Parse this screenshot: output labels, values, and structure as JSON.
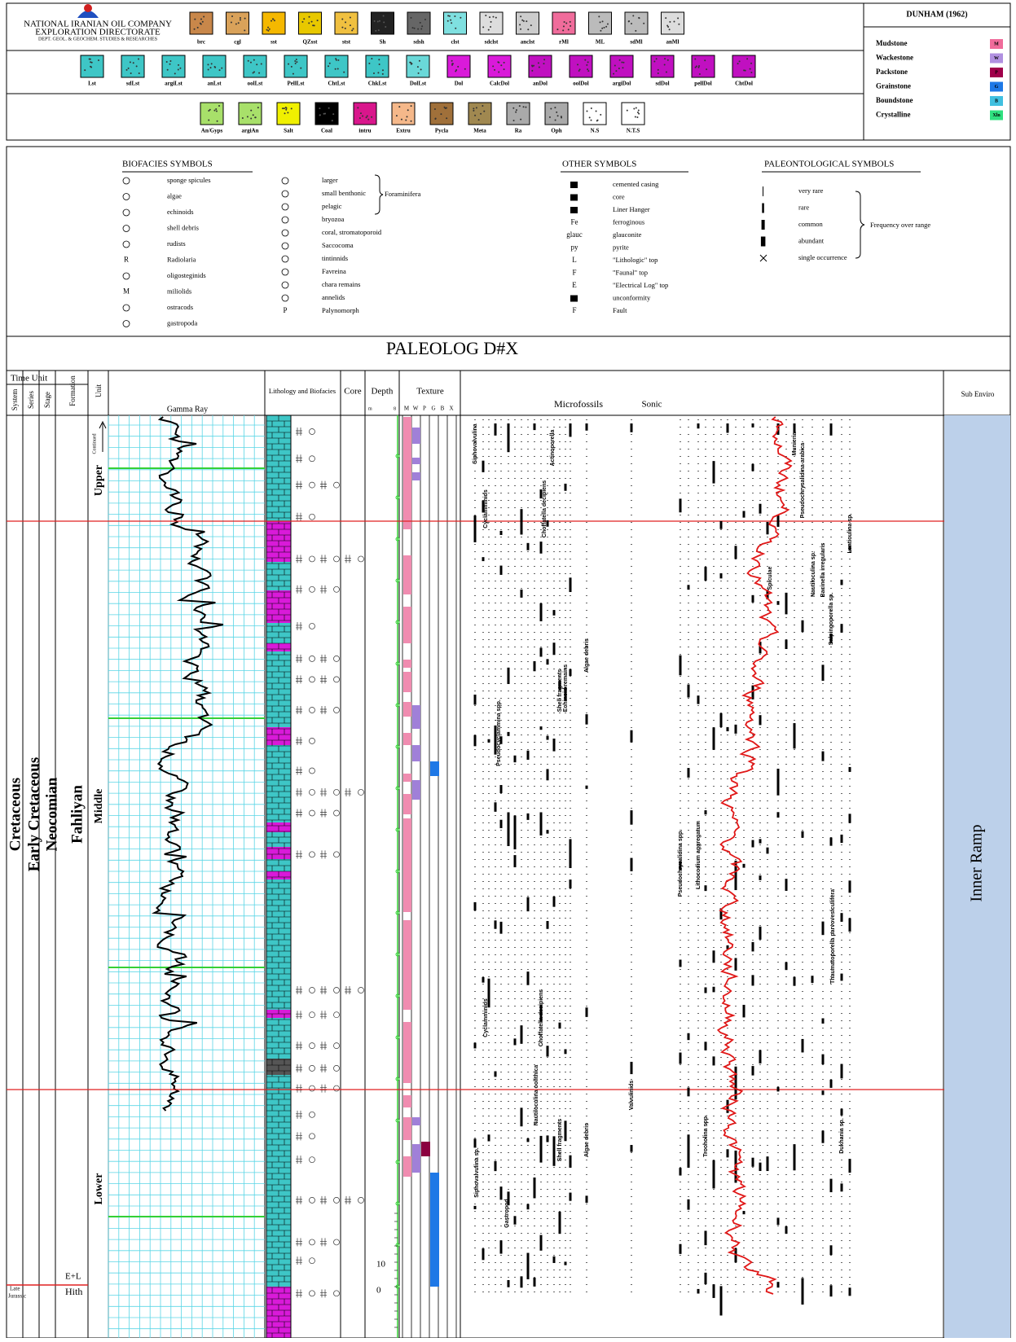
{
  "header": {
    "company": [
      "NATIONAL IRANIAN OIL COMPANY",
      "EXPLORATION DIRECTORATE",
      "DEPT. GEOL. & GEOCHEM. STUDIES & RESEARCHES"
    ],
    "lithology_rows": [
      [
        {
          "label": "brc",
          "color": "#c8874a"
        },
        {
          "label": "cgl",
          "color": "#d9a25a"
        },
        {
          "label": "sst",
          "color": "#f5b800"
        },
        {
          "label": "QZsst",
          "color": "#e8c800"
        },
        {
          "label": "stst",
          "color": "#f0c040"
        },
        {
          "label": "Sh",
          "color": "#222222"
        },
        {
          "label": "sdsh",
          "color": "#666666"
        },
        {
          "label": "clst",
          "color": "#7fe0e0"
        },
        {
          "label": "sdclst",
          "color": "#dddddd"
        },
        {
          "label": "anclst",
          "color": "#cccccc"
        },
        {
          "label": "rMl",
          "color": "#f06c9b"
        },
        {
          "label": "ML",
          "color": "#bbbbbb"
        },
        {
          "label": "sdMl",
          "color": "#bbbbbb"
        },
        {
          "label": "anMl",
          "color": "#dddddd"
        }
      ],
      [
        {
          "label": "Lst",
          "color": "#3ec6c6"
        },
        {
          "label": "sdLst",
          "color": "#3ec6c6"
        },
        {
          "label": "argiLst",
          "color": "#3ec6c6"
        },
        {
          "label": "anLst",
          "color": "#3ec6c6"
        },
        {
          "label": "oolLst",
          "color": "#3ec6c6"
        },
        {
          "label": "PellLst",
          "color": "#3ec6c6"
        },
        {
          "label": "ChtLst",
          "color": "#3ec6c6"
        },
        {
          "label": "ChkLst",
          "color": "#3ec6c6"
        },
        {
          "label": "DolLst",
          "color": "#6ad8d8"
        },
        {
          "label": "Dol",
          "color": "#d91ad9"
        },
        {
          "label": "CalcDol",
          "color": "#d91ad9"
        },
        {
          "label": "anDol",
          "color": "#c010c0"
        },
        {
          "label": "oolDol",
          "color": "#c010c0"
        },
        {
          "label": "argiDol",
          "color": "#c010c0"
        },
        {
          "label": "sdDol",
          "color": "#c010c0"
        },
        {
          "label": "pellDol",
          "color": "#c010c0"
        },
        {
          "label": "ChtDol",
          "color": "#c010c0"
        }
      ],
      [
        {
          "label": "An/Gyps",
          "color": "#a8e06a"
        },
        {
          "label": "argiAn",
          "color": "#a8e06a"
        },
        {
          "label": "Salt",
          "color": "#f0f000"
        },
        {
          "label": "Coal",
          "color": "#000000"
        },
        {
          "label": "intru",
          "color": "#d9168c"
        },
        {
          "label": "Extru",
          "color": "#f5b88a"
        },
        {
          "label": "Pycla",
          "color": "#a0703a"
        },
        {
          "label": "Meta",
          "color": "#a08850"
        },
        {
          "label": "Ra",
          "color": "#aaaaaa"
        },
        {
          "label": "Oph",
          "color": "#aaaaaa"
        },
        {
          "label": "N.S",
          "color": "#ffffff"
        },
        {
          "label": "N.T.S",
          "color": "#ffffff"
        }
      ]
    ],
    "dunham": {
      "title": "DUNHAM (1962)",
      "items": [
        {
          "name": "Mudstone",
          "code": "M",
          "color": "#f06c9b"
        },
        {
          "name": "Wackestone",
          "code": "W",
          "color": "#b090e0"
        },
        {
          "name": "Packstone",
          "code": "P",
          "color": "#a0004a"
        },
        {
          "name": "Grainstone",
          "code": "G",
          "color": "#1e78e6"
        },
        {
          "name": "Boundstone",
          "code": "B",
          "color": "#40c0e0"
        },
        {
          "name": "Crystalline",
          "code": "Xln",
          "color": "#30e080"
        }
      ]
    }
  },
  "legend": {
    "biofacies": {
      "title": "BIOFACIES SYMBOLS",
      "items": [
        {
          "label": "sponge spicules"
        },
        {
          "label": "algae"
        },
        {
          "label": "echinoids"
        },
        {
          "label": "shell debris"
        },
        {
          "label": "rudists"
        },
        {
          "label": "Radiolaria",
          "symbol": "R"
        },
        {
          "label": "oligosteginids"
        },
        {
          "label": "miliolids",
          "symbol": "M"
        },
        {
          "label": "ostracods"
        },
        {
          "label": "gastropoda"
        },
        {
          "label": "larger"
        },
        {
          "label": "small benthonic"
        },
        {
          "label": "pelagic"
        },
        {
          "label": "bryozoa"
        },
        {
          "label": "coral, stromatoporoid"
        },
        {
          "label": "Saccocoma"
        },
        {
          "label": "tintinnids"
        },
        {
          "label": "Favreina"
        },
        {
          "label": "chara remains"
        },
        {
          "label": "annelids"
        },
        {
          "label": "Palynomorph",
          "symbol": "P"
        }
      ],
      "group": "Foraminifera"
    },
    "other": {
      "title": "OTHER SYMBOLS",
      "items": [
        {
          "label": "cemented casing"
        },
        {
          "label": "core"
        },
        {
          "label": "Liner Hanger"
        },
        {
          "label": "ferroginous",
          "symbol": "Fe"
        },
        {
          "label": "glauconite",
          "symbol": "glauc"
        },
        {
          "label": "pyrite",
          "symbol": "py"
        },
        {
          "label": "\"Lithologic\" top",
          "symbol": "L"
        },
        {
          "label": "\"Faunal\" top",
          "symbol": "F"
        },
        {
          "label": "\"Electrical Log\" top",
          "symbol": "E"
        },
        {
          "label": "unconformity"
        },
        {
          "label": "Fault",
          "symbol": "F"
        }
      ]
    },
    "paleontological": {
      "title": "PALEONTOLOGICAL SYMBOLS",
      "items": [
        "very rare",
        "rare",
        "common",
        "abundant",
        "single occurrence"
      ],
      "note": "Frequency over range"
    }
  },
  "title": "PALEOLOG D#X",
  "columns": {
    "time_unit": "Time Unit",
    "system": "System",
    "series": "Series",
    "stage": "Stage",
    "formation": "Formation",
    "unit": "Unit",
    "gamma": "Gamma Ray",
    "lithology": "Lithology and Biofacies",
    "core": "Core",
    "depth": "Depth",
    "texture": "Texture",
    "microfossils": "Microfossils",
    "sonic": "Sonic",
    "sub_environment": "Sub Enviro"
  },
  "stratigraphy": {
    "system": "Cretaceous",
    "series": "Early Cretaceous",
    "stage": "Neocomian",
    "formation": "Fahliyan",
    "units": [
      "Upper",
      "Middle",
      "Lower"
    ],
    "continued": "Continued",
    "lower_formation": [
      "E+L",
      "Hith"
    ],
    "lower_system": [
      "Late",
      "Jurassic"
    ]
  },
  "depth_labels": [
    "m",
    "8",
    "10",
    "0"
  ],
  "texture_labels": [
    "M",
    "W",
    "P",
    "G",
    "B",
    "X"
  ],
  "microfossils": [
    "Siphovalvulina",
    "Cyclamminids",
    "Choffatella decipiens",
    "Actinoporella",
    "Pseudochrysalidina arabica",
    "Munieria",
    "Lenticulina sp.",
    "Nautiloculina sp.",
    "Bacinella irregularis",
    "Salpingoporella sp.",
    "Spiculae",
    "Pseudocyclammina spp.",
    "Shell fragments",
    "Echinoid remains",
    "Algae debris",
    "Pseudochrysalidina spp.",
    "Lithocodium aggregatum",
    "Thaumatoporella parvovesiculifera",
    "Cyclamminids",
    "Choffatella decipiens",
    "Nautiloculina oolithica",
    "Valvulinids",
    "Siphovalvulina sp.",
    "Gastropod",
    "Shell fragments",
    "Algae debris",
    "Trocholina spp.",
    "Dukhania sp."
  ],
  "sub_environment": "Inner Ramp"
}
